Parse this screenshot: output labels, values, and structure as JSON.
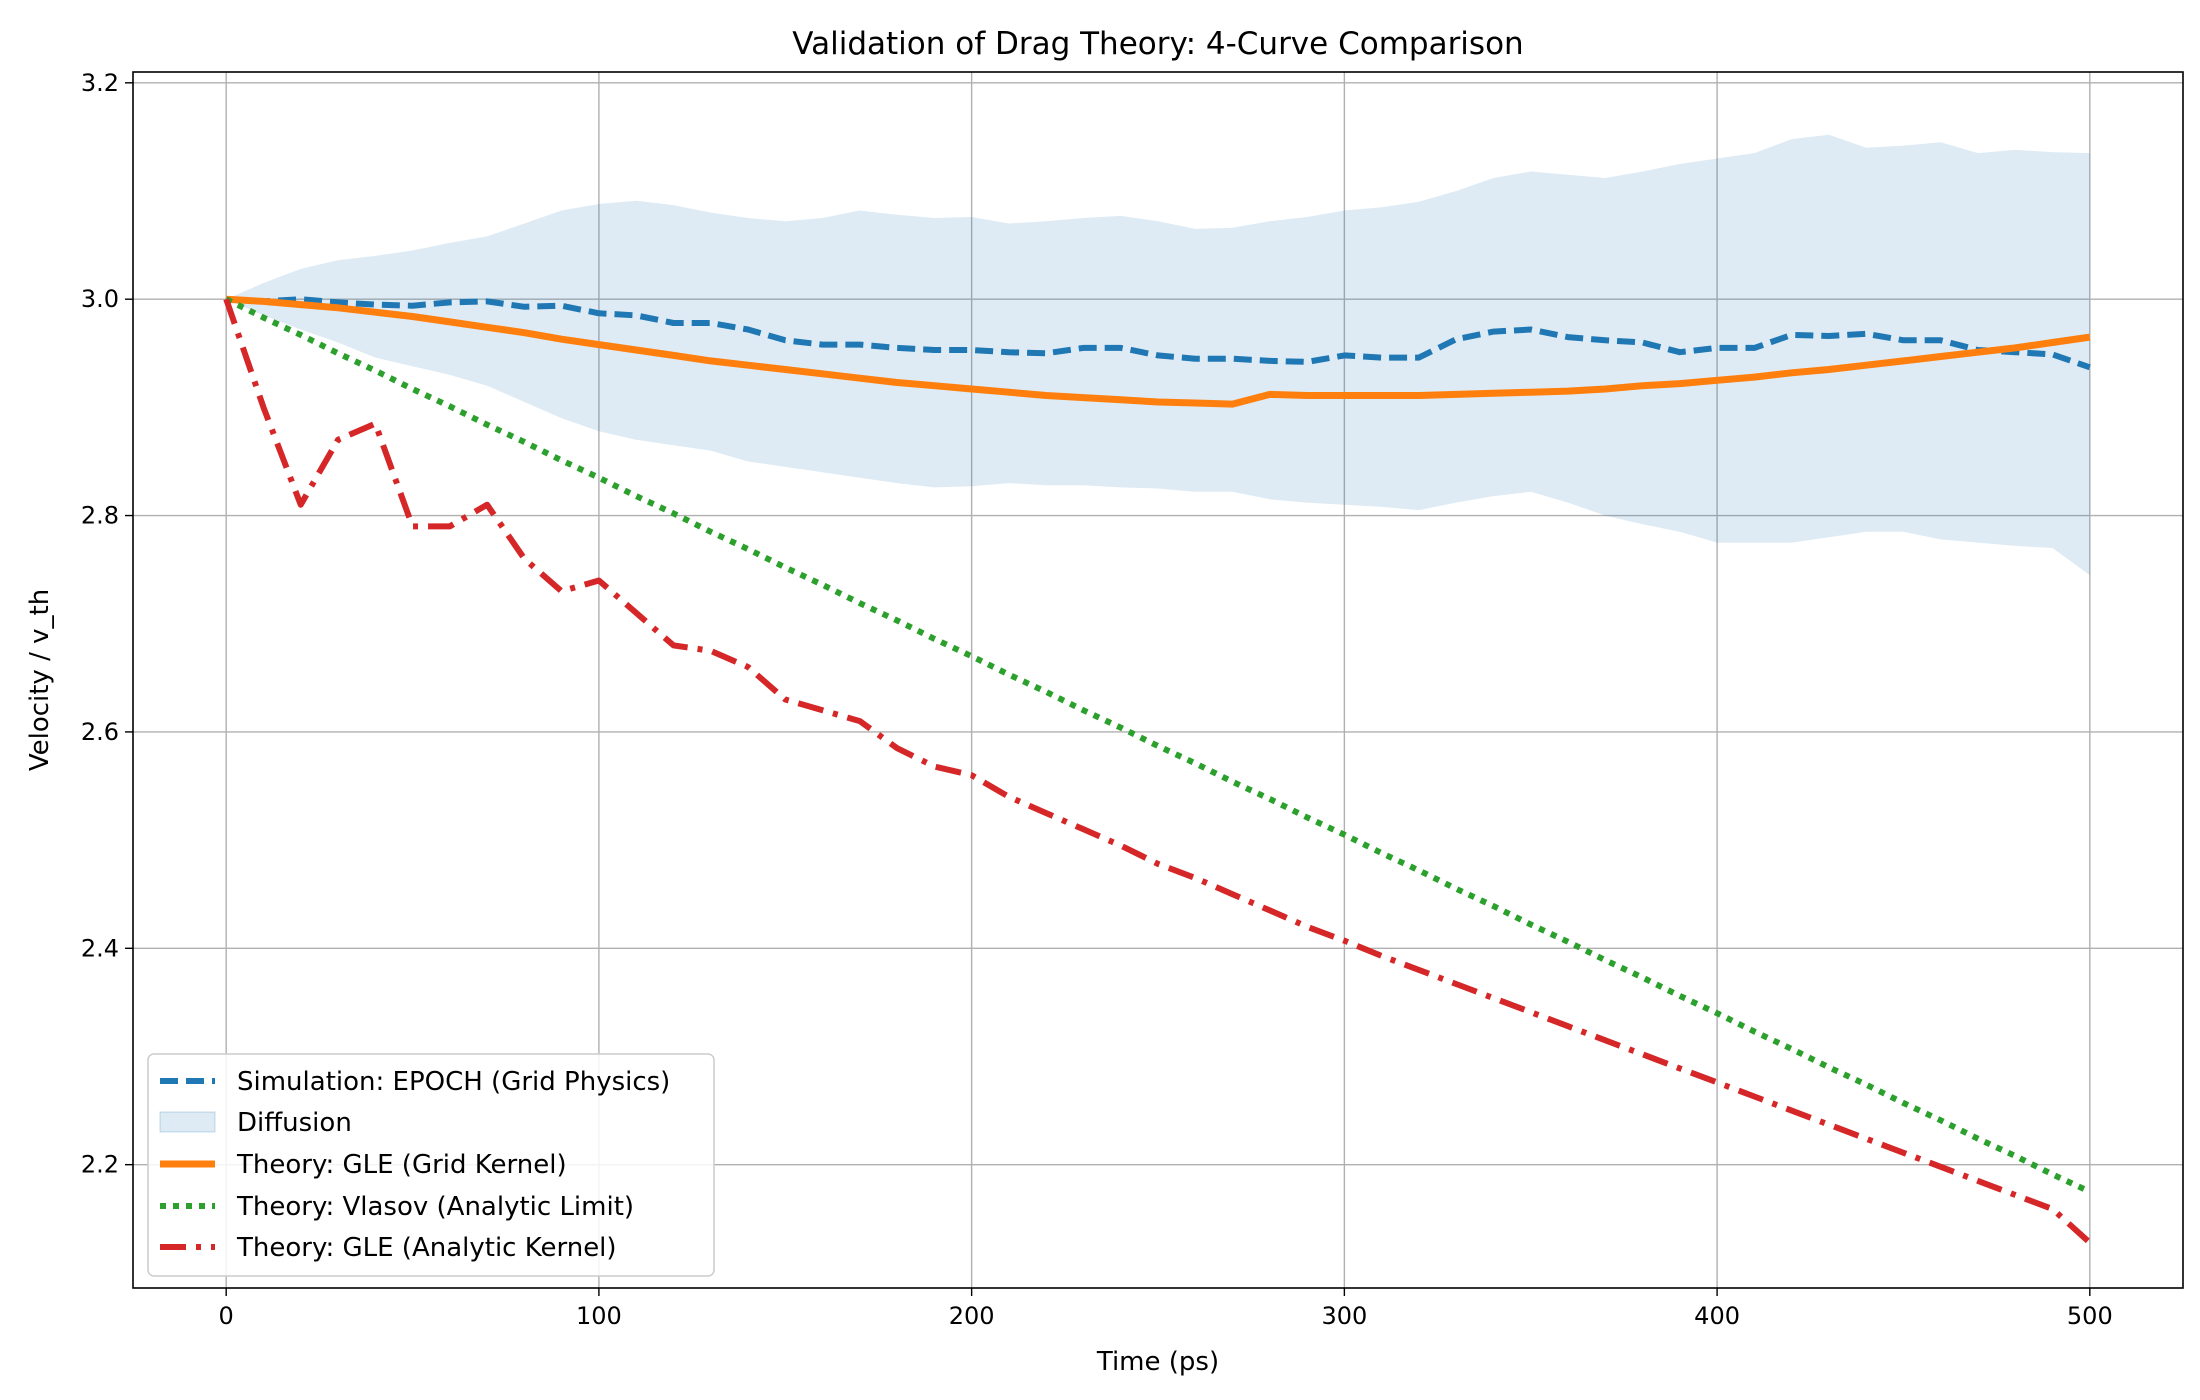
{
  "chart_data": {
    "type": "line",
    "title": "Validation of Drag Theory: 4-Curve Comparison",
    "xlabel": "Time (ps)",
    "ylabel": "Velocity / v_th",
    "xlim": [
      -25,
      525
    ],
    "ylim": [
      2.086,
      3.21
    ],
    "xticks": [
      0,
      100,
      200,
      300,
      400,
      500
    ],
    "yticks": [
      2.2,
      2.4,
      2.6,
      2.8,
      3.0,
      3.2
    ],
    "xtick_labels": [
      "0",
      "100",
      "200",
      "300",
      "400",
      "500"
    ],
    "ytick_labels": [
      "2.2",
      "2.4",
      "2.6",
      "2.8",
      "3.0",
      "3.2"
    ],
    "grid": true,
    "legend_position": "lower-left",
    "colors": {
      "simulation": "#1f77b4",
      "diffusion": "#1f77b4",
      "gle_grid": "#ff7f0e",
      "vlasov": "#2ca02c",
      "gle_analytic": "#d62728"
    },
    "x": [
      0,
      10,
      20,
      30,
      40,
      50,
      60,
      70,
      80,
      90,
      100,
      110,
      120,
      130,
      140,
      150,
      160,
      170,
      180,
      190,
      200,
      210,
      220,
      230,
      240,
      250,
      260,
      270,
      280,
      290,
      300,
      310,
      320,
      330,
      340,
      350,
      360,
      370,
      380,
      390,
      400,
      410,
      420,
      430,
      440,
      450,
      460,
      470,
      480,
      490,
      500
    ],
    "series": [
      {
        "name": "Simulation: EPOCH (Grid Physics)",
        "style": "dashed",
        "values": [
          3.0,
          2.998,
          3.0,
          2.997,
          2.995,
          2.994,
          2.997,
          2.998,
          2.993,
          2.994,
          2.987,
          2.985,
          2.978,
          2.978,
          2.972,
          2.962,
          2.958,
          2.958,
          2.955,
          2.953,
          2.953,
          2.951,
          2.95,
          2.955,
          2.955,
          2.948,
          2.945,
          2.945,
          2.943,
          2.942,
          2.948,
          2.946,
          2.946,
          2.963,
          2.97,
          2.972,
          2.965,
          2.962,
          2.96,
          2.951,
          2.955,
          2.955,
          2.967,
          2.966,
          2.968,
          2.962,
          2.962,
          2.953,
          2.951,
          2.949,
          2.937
        ]
      },
      {
        "name": "Diffusion",
        "style": "band",
        "upper": [
          3.0,
          3.015,
          3.028,
          3.036,
          3.04,
          3.045,
          3.052,
          3.058,
          3.07,
          3.082,
          3.088,
          3.091,
          3.087,
          3.08,
          3.075,
          3.072,
          3.075,
          3.082,
          3.078,
          3.075,
          3.076,
          3.07,
          3.072,
          3.075,
          3.077,
          3.072,
          3.065,
          3.066,
          3.072,
          3.076,
          3.082,
          3.085,
          3.09,
          3.1,
          3.112,
          3.118,
          3.115,
          3.112,
          3.118,
          3.125,
          3.13,
          3.135,
          3.148,
          3.152,
          3.14,
          3.142,
          3.145,
          3.135,
          3.138,
          3.136,
          3.135
        ],
        "lower": [
          3.0,
          2.985,
          2.972,
          2.96,
          2.946,
          2.938,
          2.93,
          2.92,
          2.905,
          2.89,
          2.878,
          2.87,
          2.865,
          2.86,
          2.85,
          2.845,
          2.84,
          2.835,
          2.83,
          2.826,
          2.827,
          2.83,
          2.828,
          2.828,
          2.826,
          2.825,
          2.822,
          2.822,
          2.815,
          2.812,
          2.81,
          2.808,
          2.805,
          2.812,
          2.818,
          2.822,
          2.812,
          2.8,
          2.792,
          2.785,
          2.775,
          2.775,
          2.775,
          2.78,
          2.785,
          2.785,
          2.778,
          2.775,
          2.772,
          2.77,
          2.745
        ]
      },
      {
        "name": "Theory: GLE (Grid Kernel)",
        "style": "solid",
        "values": [
          3.0,
          2.998,
          2.995,
          2.992,
          2.988,
          2.984,
          2.979,
          2.974,
          2.969,
          2.963,
          2.958,
          2.953,
          2.948,
          2.943,
          2.939,
          2.935,
          2.931,
          2.927,
          2.923,
          2.92,
          2.917,
          2.914,
          2.911,
          2.909,
          2.907,
          2.905,
          2.904,
          2.903,
          2.912,
          2.911,
          2.911,
          2.911,
          2.911,
          2.912,
          2.913,
          2.914,
          2.915,
          2.917,
          2.92,
          2.922,
          2.925,
          2.928,
          2.932,
          2.935,
          2.939,
          2.943,
          2.947,
          2.951,
          2.955,
          2.96,
          2.965
        ]
      },
      {
        "name": "Theory: Vlasov (Analytic Limit)",
        "style": "dotted",
        "values": [
          3.0,
          2.983,
          2.967,
          2.95,
          2.934,
          2.917,
          2.901,
          2.884,
          2.868,
          2.851,
          2.835,
          2.818,
          2.802,
          2.785,
          2.769,
          2.752,
          2.736,
          2.719,
          2.703,
          2.686,
          2.67,
          2.653,
          2.637,
          2.62,
          2.604,
          2.587,
          2.571,
          2.554,
          2.538,
          2.521,
          2.505,
          2.488,
          2.472,
          2.455,
          2.439,
          2.422,
          2.406,
          2.389,
          2.373,
          2.356,
          2.34,
          2.323,
          2.307,
          2.29,
          2.274,
          2.257,
          2.241,
          2.224,
          2.208,
          2.191,
          2.175
        ]
      },
      {
        "name": "Theory: GLE (Analytic Kernel)",
        "style": "dashdot",
        "values": [
          3.0,
          2.9,
          2.81,
          2.87,
          2.885,
          2.79,
          2.79,
          2.81,
          2.76,
          2.73,
          2.74,
          2.71,
          2.68,
          2.675,
          2.66,
          2.63,
          2.62,
          2.61,
          2.585,
          2.568,
          2.56,
          2.54,
          2.525,
          2.51,
          2.495,
          2.478,
          2.465,
          2.45,
          2.435,
          2.42,
          2.407,
          2.393,
          2.38,
          2.367,
          2.354,
          2.341,
          2.328,
          2.315,
          2.302,
          2.289,
          2.276,
          2.263,
          2.25,
          2.237,
          2.224,
          2.211,
          2.198,
          2.185,
          2.172,
          2.159,
          2.128
        ]
      }
    ]
  }
}
